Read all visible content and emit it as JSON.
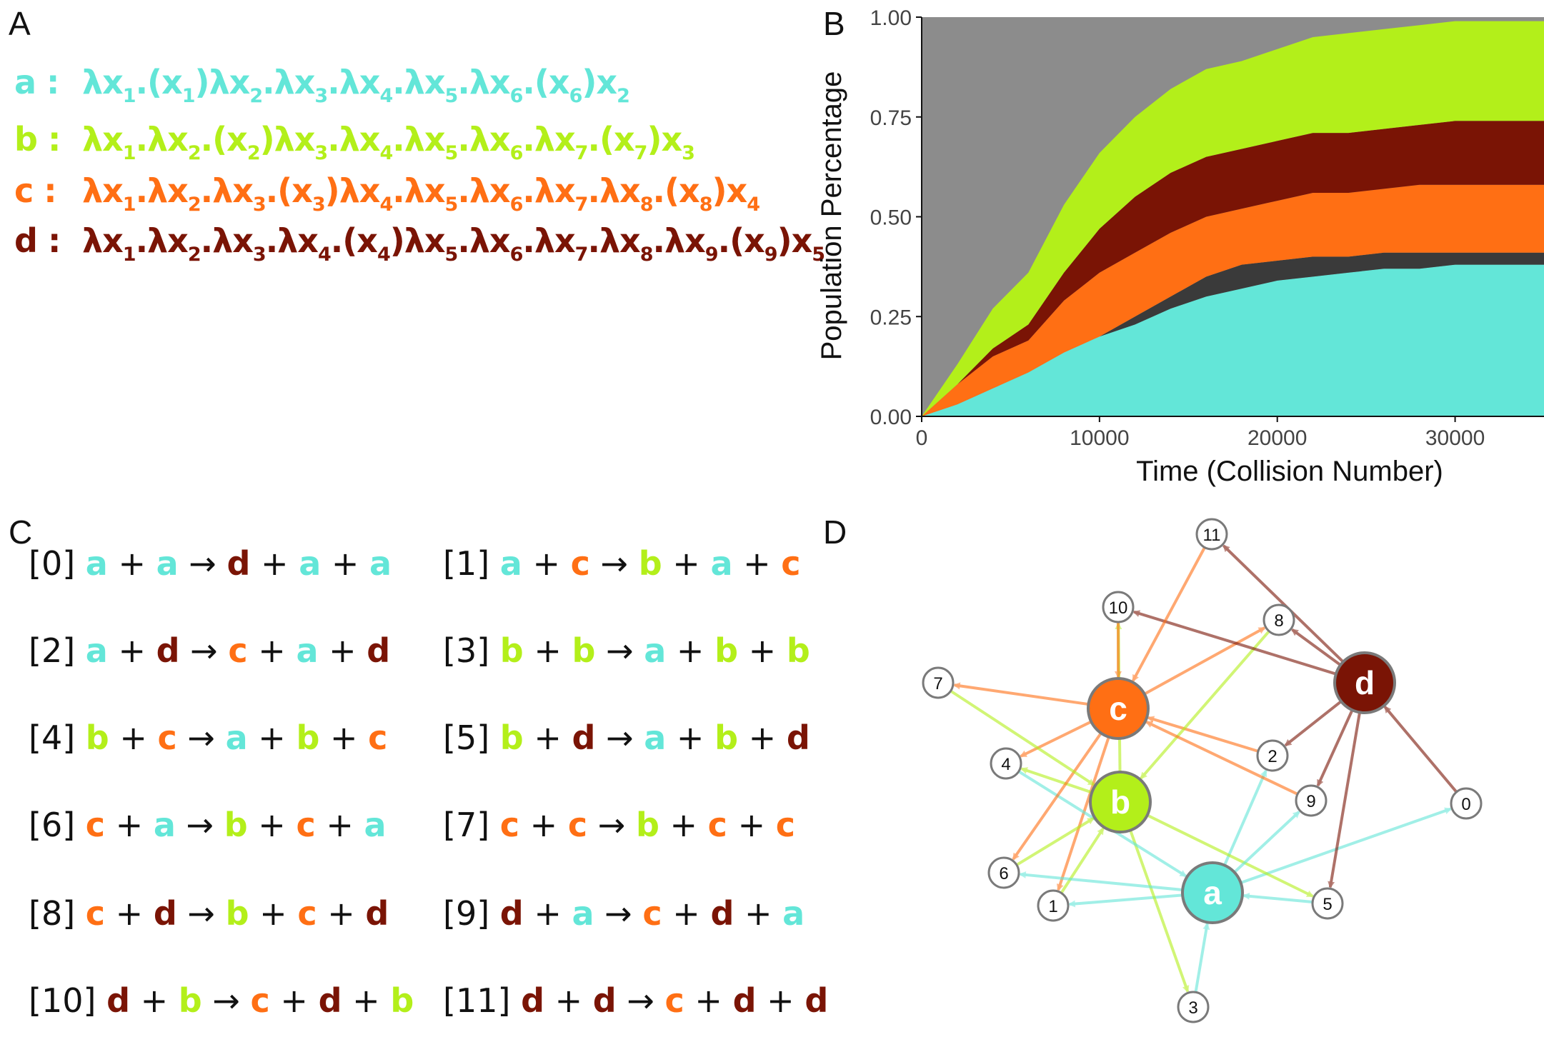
{
  "panels": {
    "a": "A",
    "b": "B",
    "c": "C",
    "d": "D"
  },
  "colors": {
    "a": "#63e6d8",
    "b": "#b3ef1a",
    "c": "#ff6f14",
    "d": "#7a1405",
    "text": "#111111"
  },
  "panel_a": {
    "expressions": [
      {
        "name": "a",
        "color": "#63e6d8",
        "sep": ":",
        "parts": [
          [
            "λx",
            "1"
          ],
          [
            ".(x",
            "1"
          ],
          [
            ")λx",
            "2"
          ],
          [
            ".λx",
            "3"
          ],
          [
            ".λx",
            "4"
          ],
          [
            ".λx",
            "5"
          ],
          [
            ".λx",
            "6"
          ],
          [
            ".(x",
            "6"
          ],
          [
            ")x",
            "2"
          ]
        ]
      },
      {
        "name": "b",
        "color": "#b3ef1a",
        "sep": ":",
        "parts": [
          [
            "λx",
            "1"
          ],
          [
            ".λx",
            "2"
          ],
          [
            ".(x",
            "2"
          ],
          [
            ")λx",
            "3"
          ],
          [
            ".λx",
            "4"
          ],
          [
            ".λx",
            "5"
          ],
          [
            ".λx",
            "6"
          ],
          [
            ".λx",
            "7"
          ],
          [
            ".(x",
            "7"
          ],
          [
            ")x",
            "3"
          ]
        ]
      },
      {
        "name": "c",
        "color": "#ff6f14",
        "sep": ":",
        "parts": [
          [
            "λx",
            "1"
          ],
          [
            ".λx",
            "2"
          ],
          [
            ".λx",
            "3"
          ],
          [
            ".(x",
            "3"
          ],
          [
            ")λx",
            "4"
          ],
          [
            ".λx",
            "5"
          ],
          [
            ".λx",
            "6"
          ],
          [
            ".λx",
            "7"
          ],
          [
            ".λx",
            "8"
          ],
          [
            ".(x",
            "8"
          ],
          [
            ")x",
            "4"
          ]
        ]
      },
      {
        "name": "d",
        "color": "#7a1405",
        "sep": ":",
        "parts": [
          [
            "λx",
            "1"
          ],
          [
            ".λx",
            "2"
          ],
          [
            ".λx",
            "3"
          ],
          [
            ".λx",
            "4"
          ],
          [
            ".(x",
            "4"
          ],
          [
            ")λx",
            "5"
          ],
          [
            ".λx",
            "6"
          ],
          [
            ".λx",
            "7"
          ],
          [
            ".λx",
            "8"
          ],
          [
            ".λx",
            "9"
          ],
          [
            ".(x",
            "9"
          ],
          [
            ")x",
            "5"
          ]
        ]
      }
    ]
  },
  "chart_data": {
    "type": "area",
    "title": "",
    "xlabel": "Time (Collision Number)",
    "ylabel": "Population Percentage",
    "xlim": [
      0,
      35000
    ],
    "ylim": [
      0,
      1
    ],
    "x_ticks": [
      "0",
      "10000",
      "20000",
      "30000"
    ],
    "x_tick_values": [
      0,
      10000,
      20000,
      30000
    ],
    "y_ticks": [
      "0.00",
      "0.25",
      "0.50",
      "0.75",
      "1.00"
    ],
    "y_tick_values": [
      0,
      0.25,
      0.5,
      0.75,
      1.0
    ],
    "grid": false,
    "legend": "none",
    "x": [
      0,
      2000,
      4000,
      6000,
      8000,
      10000,
      12000,
      14000,
      16000,
      18000,
      20000,
      22000,
      24000,
      26000,
      28000,
      30000,
      32000,
      35000
    ],
    "series": [
      {
        "color": "#63e6d8",
        "values": [
          0.0,
          0.03,
          0.07,
          0.11,
          0.16,
          0.2,
          0.23,
          0.27,
          0.3,
          0.32,
          0.34,
          0.35,
          0.36,
          0.37,
          0.37,
          0.38,
          0.38,
          0.38
        ]
      },
      {
        "color": "#3a3a3a",
        "values": [
          0.0,
          0.0,
          0.0,
          0.0,
          0.0,
          0.0,
          0.02,
          0.03,
          0.05,
          0.06,
          0.05,
          0.05,
          0.04,
          0.04,
          0.04,
          0.03,
          0.03,
          0.03
        ]
      },
      {
        "color": "#ff6f14",
        "values": [
          0.0,
          0.05,
          0.08,
          0.08,
          0.13,
          0.16,
          0.16,
          0.16,
          0.15,
          0.14,
          0.15,
          0.16,
          0.16,
          0.16,
          0.17,
          0.17,
          0.17,
          0.17
        ]
      },
      {
        "color": "#7a1405",
        "values": [
          0.0,
          0.0,
          0.02,
          0.04,
          0.07,
          0.11,
          0.14,
          0.15,
          0.15,
          0.15,
          0.15,
          0.15,
          0.15,
          0.15,
          0.15,
          0.16,
          0.16,
          0.16
        ]
      },
      {
        "color": "#b3ef1a",
        "values": [
          0.0,
          0.05,
          0.1,
          0.13,
          0.17,
          0.19,
          0.2,
          0.21,
          0.22,
          0.22,
          0.23,
          0.24,
          0.25,
          0.25,
          0.25,
          0.25,
          0.25,
          0.25
        ]
      }
    ]
  },
  "panel_c": {
    "arrow": "→",
    "reactions": [
      {
        "index": "[0]",
        "r1": "a",
        "r2": "a",
        "p": "d",
        "e1": "a",
        "e2": "a"
      },
      {
        "index": "[1]",
        "r1": "a",
        "r2": "c",
        "p": "b",
        "e1": "a",
        "e2": "c"
      },
      {
        "index": "[2]",
        "r1": "a",
        "r2": "d",
        "p": "c",
        "e1": "a",
        "e2": "d"
      },
      {
        "index": "[3]",
        "r1": "b",
        "r2": "b",
        "p": "a",
        "e1": "b",
        "e2": "b"
      },
      {
        "index": "[4]",
        "r1": "b",
        "r2": "c",
        "p": "a",
        "e1": "b",
        "e2": "c"
      },
      {
        "index": "[5]",
        "r1": "b",
        "r2": "d",
        "p": "a",
        "e1": "b",
        "e2": "d"
      },
      {
        "index": "[6]",
        "r1": "c",
        "r2": "a",
        "p": "b",
        "e1": "c",
        "e2": "a"
      },
      {
        "index": "[7]",
        "r1": "c",
        "r2": "c",
        "p": "b",
        "e1": "c",
        "e2": "c"
      },
      {
        "index": "[8]",
        "r1": "c",
        "r2": "d",
        "p": "b",
        "e1": "c",
        "e2": "d"
      },
      {
        "index": "[9]",
        "r1": "d",
        "r2": "a",
        "p": "c",
        "e1": "d",
        "e2": "a"
      },
      {
        "index": "[10]",
        "r1": "d",
        "r2": "b",
        "p": "c",
        "e1": "d",
        "e2": "b"
      },
      {
        "index": "[11]",
        "r1": "d",
        "r2": "d",
        "p": "c",
        "e1": "d",
        "e2": "d"
      }
    ]
  },
  "panel_d": {
    "species_nodes": [
      "a",
      "b",
      "c",
      "d"
    ],
    "reaction_nodes": [
      "0",
      "1",
      "2",
      "3",
      "4",
      "5",
      "6",
      "7",
      "8",
      "9",
      "10",
      "11"
    ]
  }
}
